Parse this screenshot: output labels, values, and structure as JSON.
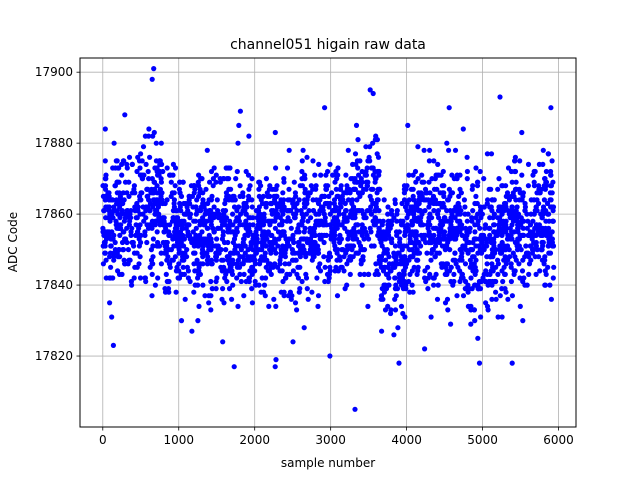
{
  "chart_data": {
    "type": "scatter",
    "title": "channel051 higain raw data",
    "xlabel": "sample number",
    "ylabel": "ADC Code",
    "xlim": [
      -300,
      6230
    ],
    "ylim": [
      17800,
      17904
    ],
    "xticks": [
      0,
      1000,
      2000,
      3000,
      4000,
      5000,
      6000
    ],
    "yticks": [
      17820,
      17840,
      17860,
      17880,
      17900
    ],
    "grid": true,
    "marker_color": "#0000ff",
    "n_samples": 5940,
    "x_range": [
      0,
      5939
    ],
    "typical_band": [
      17830,
      17885
    ],
    "notable_points": [
      {
        "x": 670,
        "y": 17901
      },
      {
        "x": 650,
        "y": 17898
      },
      {
        "x": 3520,
        "y": 17895
      },
      {
        "x": 3560,
        "y": 17894
      },
      {
        "x": 5230,
        "y": 17893
      },
      {
        "x": 2920,
        "y": 17890
      },
      {
        "x": 5900,
        "y": 17890
      },
      {
        "x": 4560,
        "y": 17890
      },
      {
        "x": 140,
        "y": 17823
      },
      {
        "x": 1730,
        "y": 17817
      },
      {
        "x": 2270,
        "y": 17817
      },
      {
        "x": 2280,
        "y": 17819
      },
      {
        "x": 2990,
        "y": 17820
      },
      {
        "x": 3900,
        "y": 17818
      },
      {
        "x": 4960,
        "y": 17818
      },
      {
        "x": 5390,
        "y": 17818
      },
      {
        "x": 3320,
        "y": 17805
      }
    ],
    "segments": [
      {
        "x_start": 0,
        "x_end": 500,
        "mean": 17858,
        "spread": 9
      },
      {
        "x_start": 500,
        "x_end": 800,
        "mean": 17862,
        "spread": 10
      },
      {
        "x_start": 800,
        "x_end": 1300,
        "mean": 17854,
        "spread": 9
      },
      {
        "x_start": 1300,
        "x_end": 2000,
        "mean": 17855,
        "spread": 9
      },
      {
        "x_start": 2000,
        "x_end": 2800,
        "mean": 17854,
        "spread": 9
      },
      {
        "x_start": 2800,
        "x_end": 3300,
        "mean": 17856,
        "spread": 9
      },
      {
        "x_start": 3300,
        "x_end": 3650,
        "mean": 17862,
        "spread": 10
      },
      {
        "x_start": 3650,
        "x_end": 4000,
        "mean": 17848,
        "spread": 9
      },
      {
        "x_start": 4000,
        "x_end": 4700,
        "mean": 17856,
        "spread": 9
      },
      {
        "x_start": 4700,
        "x_end": 5300,
        "mean": 17853,
        "spread": 9
      },
      {
        "x_start": 5300,
        "x_end": 5939,
        "mean": 17857,
        "spread": 9
      }
    ]
  }
}
